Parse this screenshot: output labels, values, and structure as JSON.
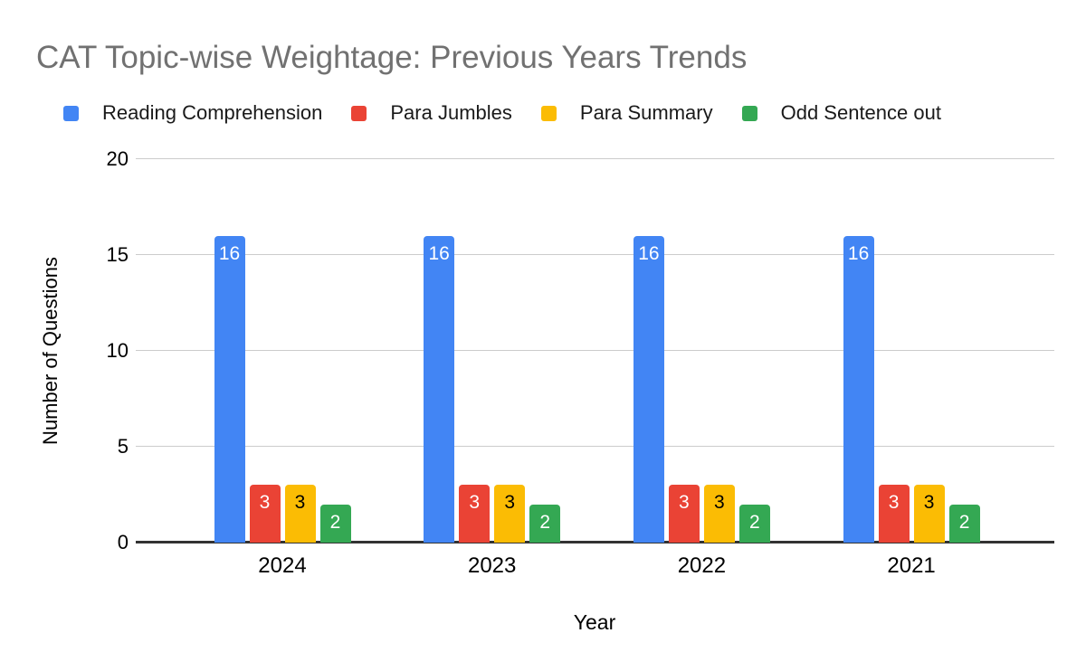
{
  "chart_data": {
    "type": "bar",
    "title": "CAT Topic-wise Weightage: Previous Years Trends",
    "categories": [
      "2024",
      "2023",
      "2022",
      "2021"
    ],
    "series": [
      {
        "name": "Reading Comprehension",
        "color": "#4285F4",
        "label_color": "#ffffff",
        "values": [
          16,
          16,
          16,
          16
        ]
      },
      {
        "name": "Para Jumbles",
        "color": "#EA4335",
        "label_color": "#ffffff",
        "values": [
          3,
          3,
          3,
          3
        ]
      },
      {
        "name": "Para Summary",
        "color": "#FBBC04",
        "label_color": "#000000",
        "values": [
          3,
          3,
          3,
          3
        ]
      },
      {
        "name": "Odd Sentence out",
        "color": "#34A853",
        "label_color": "#ffffff",
        "values": [
          2,
          2,
          2,
          2
        ]
      }
    ],
    "xlabel": "Year",
    "ylabel": "Number of Questions",
    "ylim": [
      0,
      20
    ],
    "yticks": [
      0,
      5,
      10,
      15,
      20
    ],
    "grid": true,
    "legend_position": "top",
    "data_labels": true,
    "layout_hints": {
      "title_color": "#717171",
      "gridline_color": "#cccccc",
      "axis_line_color": "#333333"
    }
  }
}
